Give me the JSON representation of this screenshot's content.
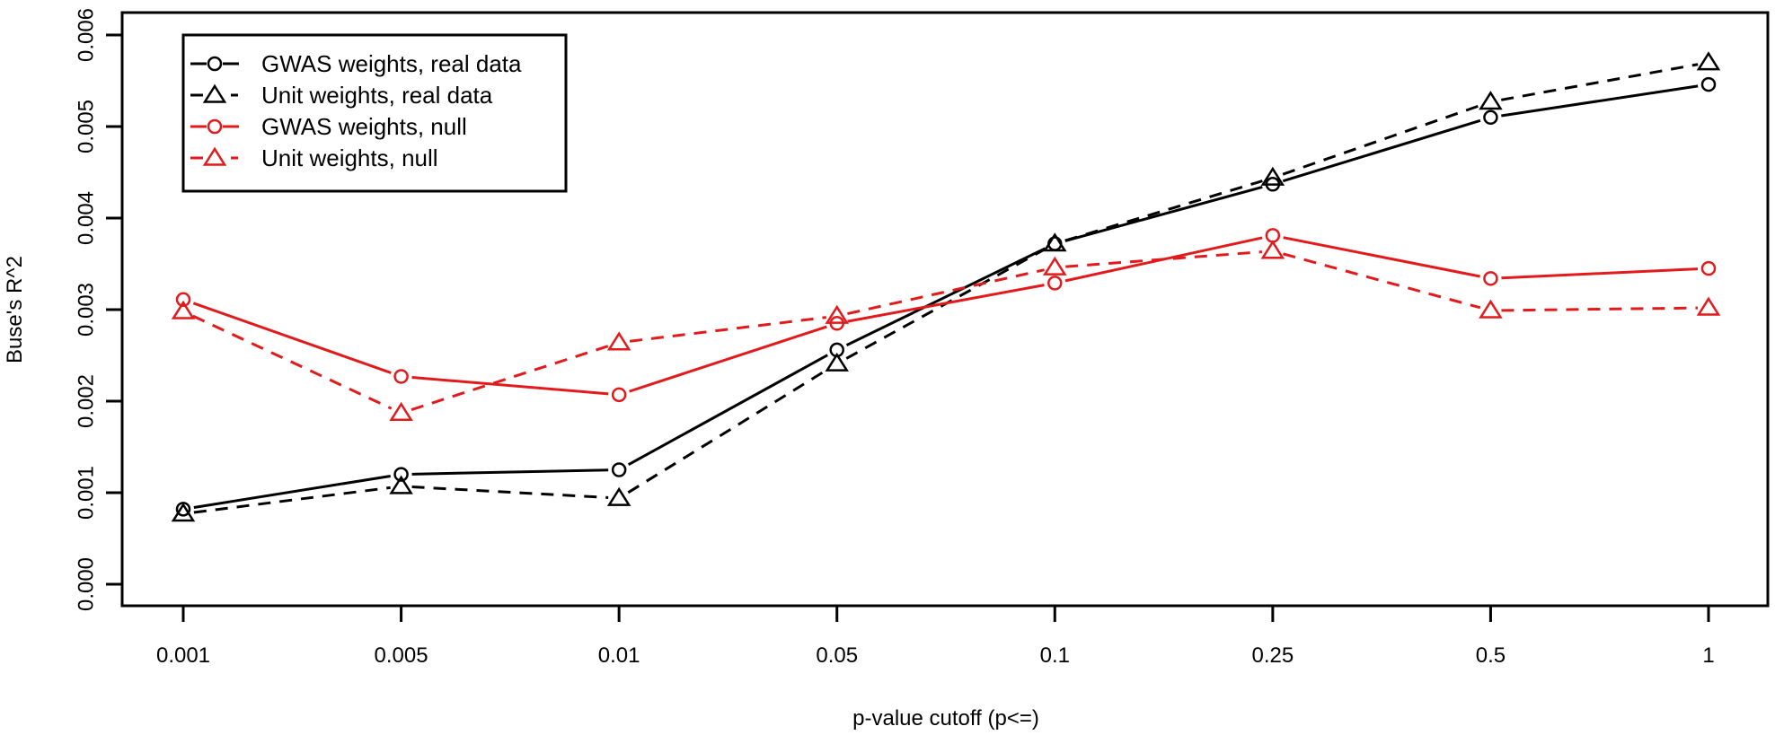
{
  "chart_data": {
    "type": "line",
    "title": "",
    "xlabel": "p-value cutoff (p<=)",
    "ylabel": "Buse's R^2",
    "categories": [
      "0.001",
      "0.005",
      "0.01",
      "0.05",
      "0.1",
      "0.25",
      "0.5",
      "1"
    ],
    "ylim": [
      0.0,
      0.006
    ],
    "yticks": [
      "0.000",
      "0.001",
      "0.002",
      "0.003",
      "0.004",
      "0.005",
      "0.006"
    ],
    "ytick_values": [
      0.0,
      0.001,
      0.002,
      0.003,
      0.004,
      0.005,
      0.006
    ],
    "grid": false,
    "legend_position": "top-left",
    "series": [
      {
        "name": "GWAS weights, real data",
        "color": "#000000",
        "line": "solid",
        "marker": "circle",
        "values": [
          0.00082,
          0.0012,
          0.00125,
          0.00256,
          0.00372,
          0.00437,
          0.0051,
          0.00546
        ]
      },
      {
        "name": "Unit weights, real data",
        "color": "#000000",
        "line": "dashed",
        "marker": "triangle",
        "values": [
          0.00077,
          0.00107,
          0.00094,
          0.00241,
          0.00372,
          0.00444,
          0.00527,
          0.0057
        ]
      },
      {
        "name": "GWAS weights, null",
        "color": "#e31a1c",
        "line": "solid",
        "marker": "circle",
        "values": [
          0.00311,
          0.00227,
          0.00207,
          0.00285,
          0.00329,
          0.00381,
          0.00334,
          0.00345
        ]
      },
      {
        "name": "Unit weights, null",
        "color": "#e31a1c",
        "line": "dashed",
        "marker": "triangle",
        "values": [
          0.00298,
          0.00187,
          0.00264,
          0.00293,
          0.00346,
          0.00364,
          0.00299,
          0.00302
        ]
      }
    ]
  }
}
